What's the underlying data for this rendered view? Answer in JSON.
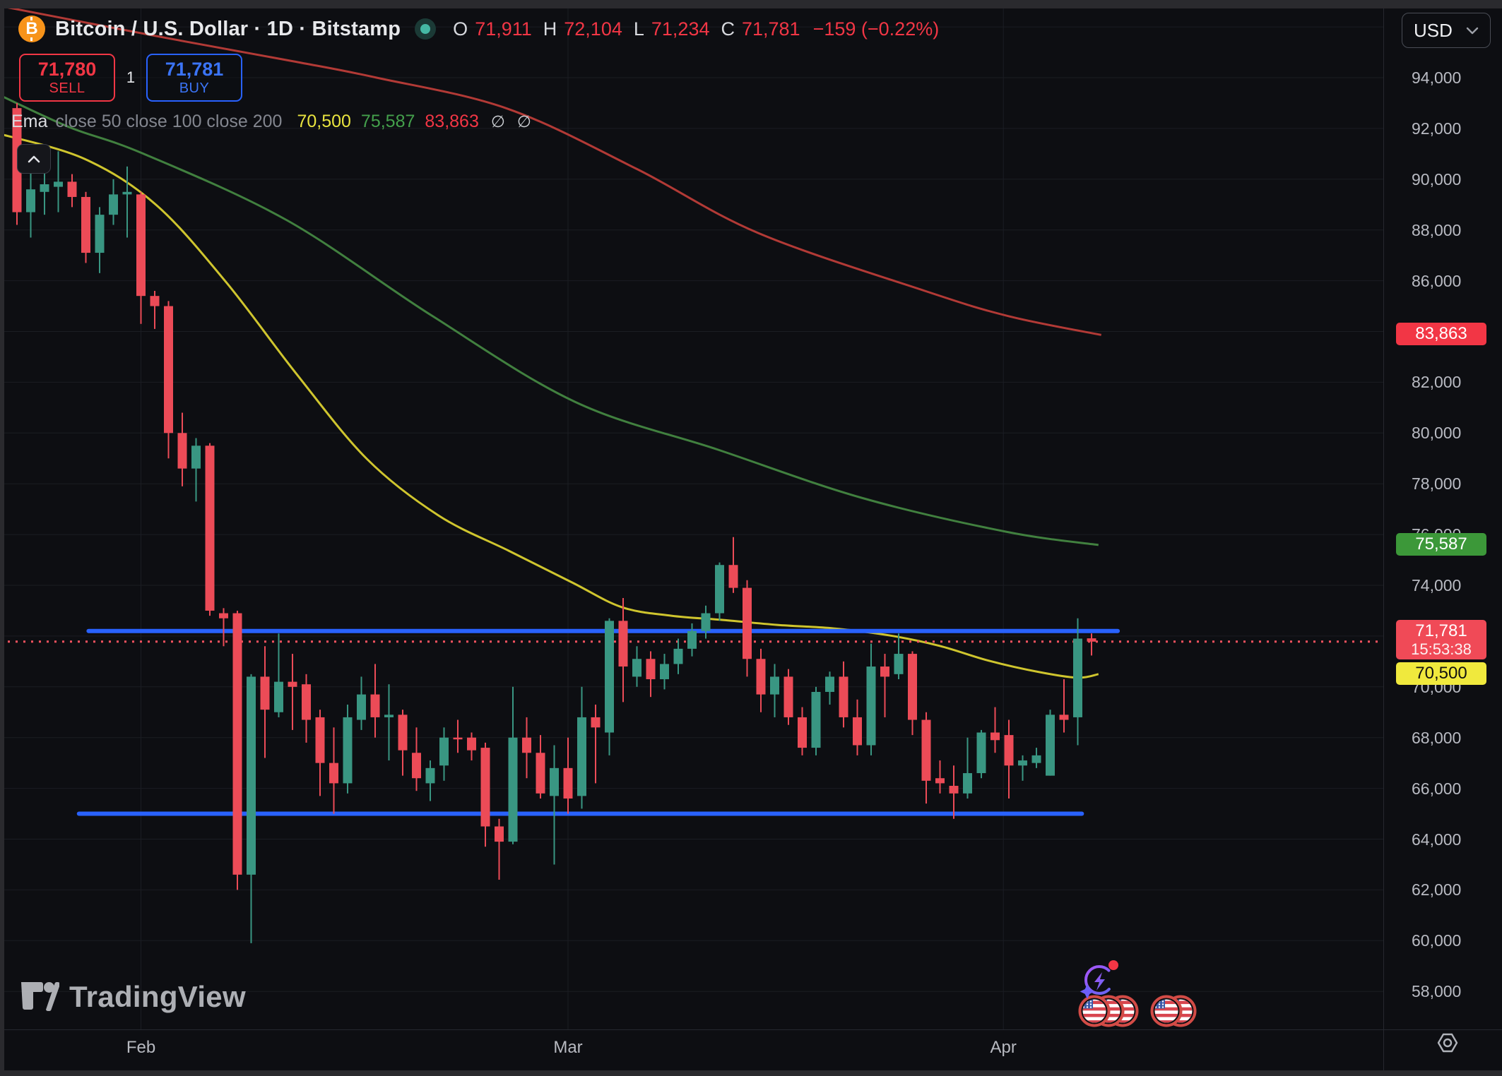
{
  "header": {
    "title": "Bitcoin / U.S. Dollar · 1D · Bitstamp",
    "ohlc": {
      "o_label": "O",
      "o": "71,911",
      "h_label": "H",
      "h": "72,104",
      "l_label": "L",
      "l": "71,234",
      "c_label": "C",
      "c": "71,781",
      "change": "−159 (−0.22%)"
    },
    "sell_button": {
      "price": "71,780",
      "label": "SELL"
    },
    "buy_button": {
      "price": "71,781",
      "label": "BUY"
    },
    "spread": "1"
  },
  "indicator": {
    "name": "Ema",
    "params": "close 50 close 100 close 200",
    "values": [
      {
        "text": "70,500",
        "color": "#e9e43f"
      },
      {
        "text": "75,587",
        "color": "#44a04c"
      },
      {
        "text": "83,863",
        "color": "#f23645"
      }
    ],
    "disabled_glyph": "∅"
  },
  "currency_selector": {
    "label": "USD"
  },
  "price_axis_badges": [
    {
      "name": "ema-200-badge",
      "text": "83,863",
      "price": 83863,
      "bg": "#f23645",
      "fg": "#ffffff"
    },
    {
      "name": "ema-100-badge",
      "text": "75,587",
      "price": 75587,
      "bg": "#3c9839",
      "fg": "#ffffff"
    },
    {
      "name": "last-price-badge",
      "text": "71,781",
      "sub": "15:53:38",
      "price": 71781,
      "bg": "#f04a57",
      "fg": "#ffffff"
    },
    {
      "name": "ema-50-badge",
      "text": "70,500",
      "price": 70500,
      "bg": "#f0e93d",
      "fg": "#111111"
    }
  ],
  "watermark": "TradingView",
  "chart_data": {
    "type": "candlestick",
    "title": "Bitcoin / U.S. Dollar 1D Bitstamp",
    "ylim": [
      56800,
      96400
    ],
    "y_ticks": [
      58000,
      60000,
      62000,
      64000,
      66000,
      68000,
      70000,
      72000,
      74000,
      76000,
      78000,
      80000,
      82000,
      84000,
      86000,
      88000,
      90000,
      92000,
      94000
    ],
    "grid": true,
    "months": [
      {
        "label": "Feb",
        "i": 9
      },
      {
        "label": "Mar",
        "i": 40
      },
      {
        "label": "Apr",
        "i": 71.6
      }
    ],
    "last_price": 71781,
    "levels": [
      {
        "name": "resistance-line",
        "price": 72200,
        "i_from": 5.2,
        "i_to": 79.9,
        "color": "#2962ff"
      },
      {
        "name": "support-line",
        "price": 65000,
        "i_from": 4.5,
        "i_to": 77.3,
        "color": "#2962ff"
      }
    ],
    "candle_format": [
      "open",
      "high",
      "low",
      "close"
    ],
    "candles": [
      [
        92800,
        93000,
        88200,
        88700
      ],
      [
        88700,
        90400,
        87700,
        89600
      ],
      [
        89500,
        90600,
        88600,
        89800
      ],
      [
        89700,
        91100,
        88700,
        89900
      ],
      [
        89900,
        90200,
        88900,
        89300
      ],
      [
        89300,
        89500,
        86700,
        87100
      ],
      [
        87100,
        88900,
        86300,
        88600
      ],
      [
        88600,
        90000,
        88200,
        89400
      ],
      [
        89400,
        90500,
        87700,
        89500
      ],
      [
        89400,
        89500,
        84300,
        85400
      ],
      [
        85400,
        85600,
        84100,
        85000
      ],
      [
        85000,
        85200,
        79000,
        80000
      ],
      [
        80000,
        80800,
        77900,
        78600
      ],
      [
        78600,
        79800,
        77300,
        79500
      ],
      [
        79500,
        79600,
        72800,
        73000
      ],
      [
        72900,
        73100,
        71600,
        72700
      ],
      [
        72900,
        73000,
        62000,
        62600
      ],
      [
        62600,
        70500,
        59900,
        70400
      ],
      [
        70400,
        71600,
        67200,
        69100
      ],
      [
        69000,
        72100,
        68800,
        70200
      ],
      [
        70200,
        71300,
        68300,
        70000
      ],
      [
        70100,
        70500,
        67800,
        68700
      ],
      [
        68800,
        69100,
        65700,
        67000
      ],
      [
        67000,
        68400,
        65000,
        66200
      ],
      [
        66200,
        69300,
        65800,
        68800
      ],
      [
        68700,
        70400,
        68300,
        69700
      ],
      [
        69700,
        70900,
        68000,
        68800
      ],
      [
        68800,
        70100,
        67100,
        68900
      ],
      [
        68900,
        69100,
        66500,
        67500
      ],
      [
        67400,
        68400,
        65900,
        66400
      ],
      [
        66200,
        67100,
        65500,
        66800
      ],
      [
        66900,
        68400,
        66300,
        68000
      ],
      [
        68000,
        68700,
        67400,
        68000
      ],
      [
        68000,
        68200,
        67100,
        67500
      ],
      [
        67600,
        67800,
        63700,
        64500
      ],
      [
        64500,
        64800,
        62400,
        63900
      ],
      [
        63900,
        70000,
        63800,
        68000
      ],
      [
        68000,
        68800,
        66400,
        67400
      ],
      [
        67400,
        68100,
        65600,
        65800
      ],
      [
        65700,
        67700,
        63000,
        66800
      ],
      [
        66800,
        68000,
        65000,
        65600
      ],
      [
        65700,
        70000,
        65200,
        68800
      ],
      [
        68800,
        69300,
        66200,
        68400
      ],
      [
        68200,
        72700,
        67300,
        72600
      ],
      [
        72600,
        73500,
        69400,
        70800
      ],
      [
        70400,
        71600,
        70000,
        71100
      ],
      [
        71100,
        71400,
        69600,
        70300
      ],
      [
        70300,
        71300,
        69900,
        70900
      ],
      [
        70900,
        71900,
        70500,
        71500
      ],
      [
        71500,
        72500,
        71200,
        72200
      ],
      [
        72200,
        73200,
        71900,
        72900
      ],
      [
        72900,
        74900,
        72600,
        74800
      ],
      [
        74800,
        75900,
        73700,
        73900
      ],
      [
        73900,
        74200,
        70400,
        71100
      ],
      [
        71100,
        71500,
        69000,
        69700
      ],
      [
        69700,
        70900,
        68800,
        70400
      ],
      [
        70400,
        70700,
        68500,
        68800
      ],
      [
        68800,
        69200,
        67300,
        67600
      ],
      [
        67600,
        70000,
        67300,
        69800
      ],
      [
        69800,
        70600,
        69300,
        70400
      ],
      [
        70400,
        71000,
        68400,
        68800
      ],
      [
        68800,
        69500,
        67300,
        67700
      ],
      [
        67700,
        71700,
        67300,
        70800
      ],
      [
        70800,
        71300,
        68800,
        70400
      ],
      [
        70500,
        72100,
        70300,
        71300
      ],
      [
        71300,
        71400,
        68100,
        68700
      ],
      [
        68700,
        69000,
        65400,
        66300
      ],
      [
        66400,
        67100,
        65800,
        66200
      ],
      [
        66100,
        66900,
        64800,
        65800
      ],
      [
        65800,
        68000,
        65600,
        66600
      ],
      [
        66600,
        68300,
        66400,
        68200
      ],
      [
        68200,
        69200,
        67400,
        67900
      ],
      [
        68100,
        68700,
        65600,
        66900
      ],
      [
        66900,
        67300,
        66300,
        67100
      ],
      [
        67000,
        67600,
        66800,
        67300
      ],
      [
        66500,
        69100,
        66500,
        68900
      ],
      [
        68900,
        70300,
        68200,
        68700
      ],
      [
        68800,
        72700,
        67700,
        71900
      ],
      [
        71911,
        72104,
        71234,
        71781
      ]
    ],
    "up_color": "#399682",
    "down_color": "#ec4b57",
    "emas": {
      "ema50": {
        "color": "#cfc52e",
        "points": [
          [
            -1.2,
            91780
          ],
          [
            4.9,
            90800
          ],
          [
            10.1,
            88990
          ],
          [
            15.2,
            85930
          ],
          [
            20.3,
            82320
          ],
          [
            25.4,
            78980
          ],
          [
            30.6,
            76750
          ],
          [
            35.7,
            75360
          ],
          [
            40.3,
            74110
          ],
          [
            43.9,
            73140
          ],
          [
            47.5,
            72800
          ],
          [
            51.1,
            72640
          ],
          [
            55.2,
            72440
          ],
          [
            59.3,
            72300
          ],
          [
            63.4,
            72020
          ],
          [
            67,
            71610
          ],
          [
            70.6,
            71020
          ],
          [
            74.2,
            70580
          ],
          [
            77,
            70360
          ],
          [
            78.5,
            70500
          ]
        ]
      },
      "ema100": {
        "color": "#41803f",
        "points": [
          [
            -1.2,
            93300
          ],
          [
            3.8,
            92050
          ],
          [
            9.2,
            91000
          ],
          [
            19.6,
            88380
          ],
          [
            30.1,
            84630
          ],
          [
            40.5,
            81230
          ],
          [
            50.9,
            79340
          ],
          [
            61.3,
            77450
          ],
          [
            71.8,
            76110
          ],
          [
            78.5,
            75587
          ]
        ]
      },
      "ema200": {
        "color": "#b23a36",
        "points": [
          [
            -1,
            96800
          ],
          [
            10,
            95650
          ],
          [
            20,
            94650
          ],
          [
            26.1,
            94000
          ],
          [
            35.6,
            92780
          ],
          [
            45,
            90400
          ],
          [
            53.8,
            87880
          ],
          [
            65.9,
            85600
          ],
          [
            72,
            84600
          ],
          [
            78.7,
            83863
          ]
        ]
      }
    }
  }
}
